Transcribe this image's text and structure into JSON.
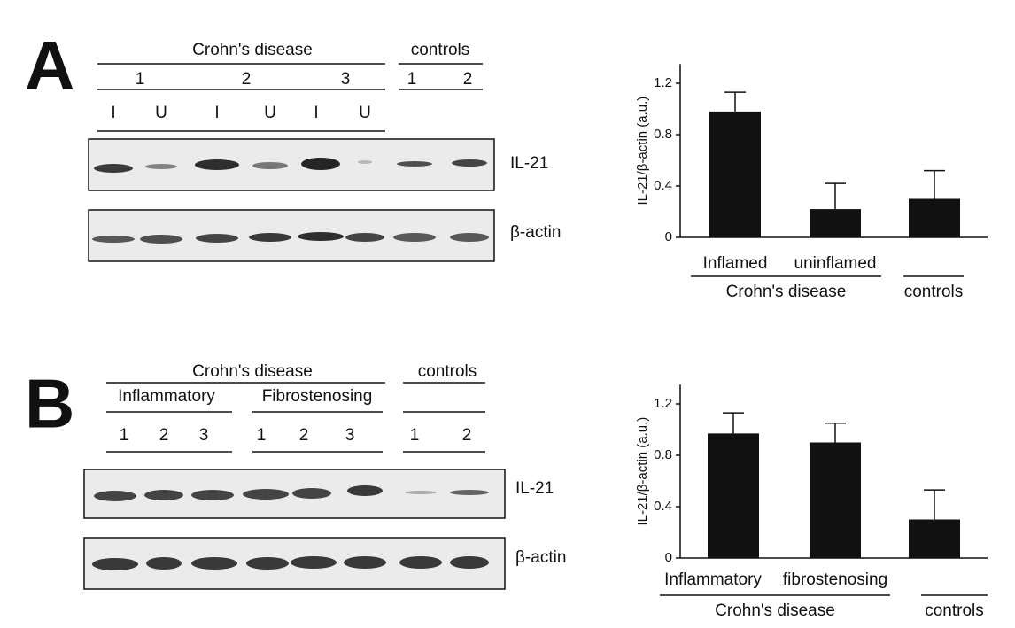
{
  "panels": [
    {
      "letter": "A",
      "blot": {
        "groups": [
          "Crohn's disease",
          "controls"
        ],
        "lane_numbers": [
          "1",
          "2",
          "3",
          "1",
          "2"
        ],
        "lane_labels": [
          "I",
          "U",
          "I",
          "U",
          "I",
          "U"
        ],
        "rows": [
          "IL-21",
          "β-actin"
        ]
      }
    },
    {
      "letter": "B",
      "blot": {
        "groups": [
          "Crohn's disease",
          "controls"
        ],
        "subgroups": [
          "Inflammatory",
          "Fibrostenosing"
        ],
        "lane_numbers": [
          "1",
          "2",
          "3",
          "1",
          "2",
          "3",
          "1",
          "2"
        ],
        "rows": [
          "IL-21",
          "β-actin"
        ]
      }
    }
  ],
  "chart_data": [
    {
      "type": "bar",
      "ylabel": "IL-21/β-actin (a.u.)",
      "categories": [
        "Inflamed",
        "uninflamed",
        null
      ],
      "groups": [
        "Crohn's disease",
        "controls"
      ],
      "values": [
        0.98,
        0.22,
        0.3
      ],
      "errors": [
        0.15,
        0.2,
        0.22
      ],
      "color": "#111111",
      "ylim": [
        0,
        1.35
      ],
      "yticks": [
        0,
        0.4,
        0.8,
        1.2
      ]
    },
    {
      "type": "bar",
      "ylabel": "IL-21/β-actin (a.u.)",
      "categories": [
        "Inflammatory",
        "fibrostenosing",
        null
      ],
      "groups": [
        "Crohn's disease",
        "controls"
      ],
      "values": [
        0.97,
        0.9,
        0.3
      ],
      "errors": [
        0.16,
        0.15,
        0.23
      ],
      "color": "#111111",
      "ylim": [
        0,
        1.35
      ],
      "yticks": [
        0,
        0.4,
        0.8,
        1.2
      ]
    }
  ]
}
